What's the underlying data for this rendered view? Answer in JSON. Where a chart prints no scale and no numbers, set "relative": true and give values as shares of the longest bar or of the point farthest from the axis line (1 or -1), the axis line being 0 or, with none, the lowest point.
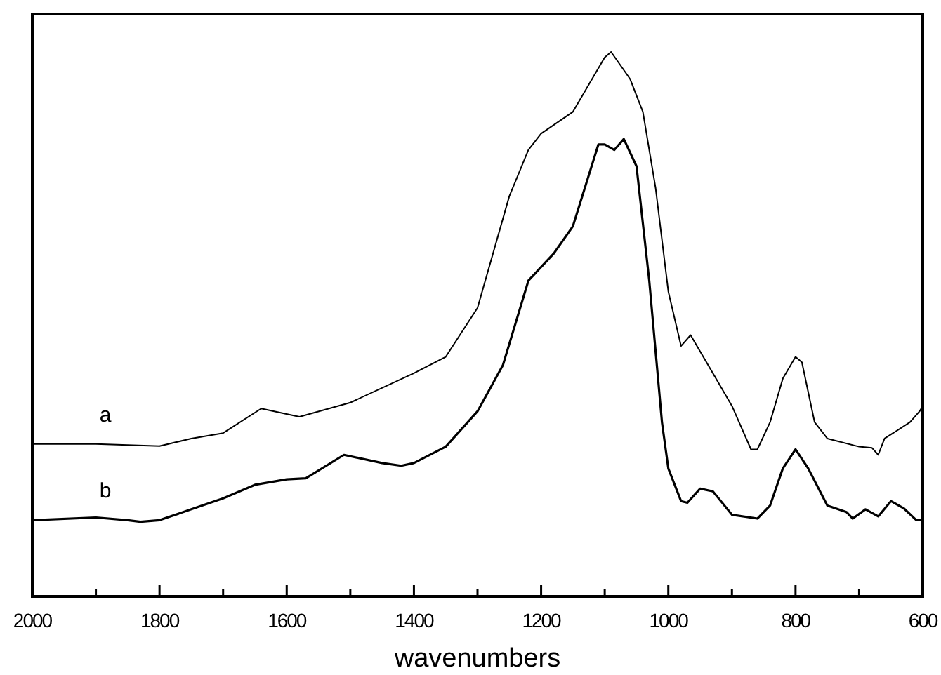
{
  "chart_data": {
    "type": "line",
    "relative": true,
    "xlabel": "wavenumbers",
    "xlim": [
      2000,
      600
    ],
    "xticks": [
      2000,
      {
        "value": 1900,
        "label": null
      },
      1800,
      {
        "value": 1700,
        "label": null
      },
      1600,
      {
        "value": 1500,
        "label": null
      },
      1400,
      {
        "value": 1300,
        "label": null
      },
      1200,
      {
        "value": 1100,
        "label": null
      },
      1000,
      {
        "value": 900,
        "label": null
      },
      800,
      {
        "value": 700,
        "label": null
      },
      600
    ],
    "tick_labels": "x",
    "grid": false,
    "line_style": "solid",
    "annotations": [
      "a",
      "b"
    ],
    "series": [
      {
        "color": "#000000",
        "x": [
          2000,
          1900,
          1800,
          1750,
          1700,
          1640,
          1580,
          1500,
          1400,
          1350,
          1300,
          1250,
          1220,
          1200,
          1150,
          1100,
          1090,
          1060,
          1040,
          1020,
          1000,
          980,
          965,
          940,
          900,
          870,
          860,
          840,
          820,
          800,
          790,
          770,
          750,
          700,
          680,
          670,
          660,
          620,
          605,
          600
        ],
        "values": [
          0.28,
          0.28,
          0.276,
          0.29,
          0.3,
          0.345,
          0.33,
          0.356,
          0.41,
          0.44,
          0.53,
          0.735,
          0.82,
          0.85,
          0.89,
          0.99,
          1.0,
          0.95,
          0.89,
          0.75,
          0.56,
          0.46,
          0.48,
          0.43,
          0.35,
          0.27,
          0.27,
          0.32,
          0.4,
          0.44,
          0.43,
          0.32,
          0.29,
          0.275,
          0.273,
          0.26,
          0.29,
          0.32,
          0.34,
          0.35
        ]
      },
      {
        "color": "#000000",
        "x": [
          2000,
          1900,
          1850,
          1830,
          1800,
          1750,
          1700,
          1650,
          1600,
          1570,
          1510,
          1450,
          1420,
          1400,
          1350,
          1300,
          1260,
          1220,
          1180,
          1150,
          1110,
          1100,
          1085,
          1070,
          1050,
          1030,
          1010,
          1000,
          980,
          970,
          950,
          930,
          900,
          860,
          840,
          820,
          800,
          780,
          750,
          720,
          710,
          690,
          670,
          650,
          630,
          610,
          600
        ],
        "values": [
          0.14,
          0.145,
          0.14,
          0.137,
          0.14,
          0.16,
          0.18,
          0.205,
          0.215,
          0.217,
          0.26,
          0.245,
          0.24,
          0.245,
          0.275,
          0.34,
          0.425,
          0.58,
          0.63,
          0.68,
          0.83,
          0.83,
          0.82,
          0.84,
          0.79,
          0.58,
          0.32,
          0.235,
          0.175,
          0.172,
          0.198,
          0.193,
          0.15,
          0.143,
          0.167,
          0.235,
          0.27,
          0.235,
          0.167,
          0.155,
          0.143,
          0.16,
          0.147,
          0.175,
          0.162,
          0.14,
          0.14
        ]
      }
    ]
  }
}
